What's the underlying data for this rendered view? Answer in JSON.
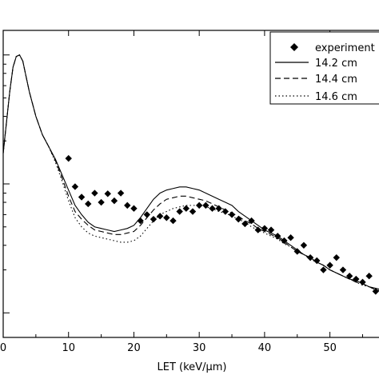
{
  "chart_data": {
    "type": "line",
    "xlabel": "LET (keV/µm)",
    "xlim": [
      0,
      58
    ],
    "ylim": [
      0,
      1
    ],
    "x_ticks": [
      "0",
      "10",
      "20",
      "30",
      "40",
      "50"
    ],
    "legend_position": "top-right",
    "series": [
      {
        "name": "experiment",
        "style": "diamond-markers",
        "x": [
          10,
          11,
          12,
          13,
          14,
          15,
          16,
          17,
          18,
          19,
          20,
          21,
          22,
          23,
          24,
          25,
          26,
          27,
          28,
          29,
          30,
          31,
          32,
          33,
          34,
          35,
          36,
          37,
          38,
          39,
          40,
          41,
          42,
          43,
          44,
          45,
          46,
          47,
          48,
          49,
          50,
          51,
          52,
          53,
          54,
          55,
          56,
          57,
          58
        ],
        "y": [
          0.583,
          0.491,
          0.457,
          0.435,
          0.47,
          0.44,
          0.468,
          0.445,
          0.47,
          0.43,
          0.42,
          0.38,
          0.4,
          0.385,
          0.395,
          0.39,
          0.38,
          0.41,
          0.42,
          0.41,
          0.43,
          0.43,
          0.42,
          0.42,
          0.41,
          0.4,
          0.385,
          0.37,
          0.38,
          0.35,
          0.355,
          0.35,
          0.33,
          0.315,
          0.325,
          0.28,
          0.3,
          0.26,
          0.25,
          0.22,
          0.235,
          0.26,
          0.22,
          0.2,
          0.19,
          0.18,
          0.2,
          0.15,
          0.155
        ]
      },
      {
        "name": "14.2 cm",
        "style": "solid",
        "x": [
          0,
          0.5,
          1,
          1.5,
          2,
          2.5,
          3,
          3.5,
          4,
          5,
          6,
          7,
          8,
          9,
          10,
          11,
          12,
          13,
          14,
          15,
          16,
          17,
          18,
          19,
          20,
          21,
          22,
          23,
          24,
          25,
          26,
          27,
          28,
          29,
          30,
          31,
          32,
          33,
          34,
          35,
          36,
          37,
          38,
          39,
          40,
          41,
          42,
          43,
          44,
          45,
          46,
          47,
          48,
          49,
          50,
          51,
          52,
          53,
          54,
          55,
          56,
          57,
          58
        ],
        "y": [
          0.6,
          0.7,
          0.8,
          0.88,
          0.915,
          0.92,
          0.9,
          0.85,
          0.8,
          0.72,
          0.66,
          0.62,
          0.58,
          0.53,
          0.48,
          0.43,
          0.4,
          0.375,
          0.36,
          0.355,
          0.35,
          0.345,
          0.35,
          0.355,
          0.365,
          0.39,
          0.42,
          0.45,
          0.47,
          0.48,
          0.485,
          0.49,
          0.49,
          0.485,
          0.48,
          0.47,
          0.46,
          0.45,
          0.44,
          0.43,
          0.41,
          0.395,
          0.38,
          0.365,
          0.35,
          0.34,
          0.33,
          0.315,
          0.3,
          0.285,
          0.27,
          0.26,
          0.245,
          0.235,
          0.22,
          0.21,
          0.2,
          0.19,
          0.185,
          0.175,
          0.165,
          0.16,
          0.155
        ]
      },
      {
        "name": "14.4 cm",
        "style": "dashed",
        "x": [
          0,
          0.5,
          1,
          1.5,
          2,
          2.5,
          3,
          3.5,
          4,
          5,
          6,
          7,
          8,
          9,
          10,
          11,
          12,
          13,
          14,
          15,
          16,
          17,
          18,
          19,
          20,
          21,
          22,
          23,
          24,
          25,
          26,
          27,
          28,
          29,
          30,
          31,
          32,
          33,
          34,
          35,
          36,
          37,
          38,
          39,
          40,
          41,
          42,
          43,
          44,
          45,
          46,
          47,
          48,
          49,
          50,
          51,
          52,
          53,
          54,
          55,
          56,
          57,
          58
        ],
        "y": [
          0.6,
          0.7,
          0.8,
          0.88,
          0.915,
          0.92,
          0.9,
          0.85,
          0.8,
          0.72,
          0.66,
          0.62,
          0.575,
          0.52,
          0.46,
          0.41,
          0.385,
          0.365,
          0.35,
          0.345,
          0.34,
          0.335,
          0.335,
          0.34,
          0.345,
          0.365,
          0.39,
          0.415,
          0.435,
          0.45,
          0.455,
          0.46,
          0.46,
          0.455,
          0.45,
          0.445,
          0.435,
          0.425,
          0.415,
          0.405,
          0.395,
          0.38,
          0.37,
          0.355,
          0.345,
          0.335,
          0.325,
          0.31,
          0.295,
          0.28,
          0.27,
          0.255,
          0.245,
          0.235,
          0.22,
          0.21,
          0.2,
          0.19,
          0.18,
          0.175,
          0.165,
          0.155,
          0.15
        ]
      },
      {
        "name": "14.6 cm",
        "style": "dotted",
        "x": [
          0,
          0.5,
          1,
          1.5,
          2,
          2.5,
          3,
          3.5,
          4,
          5,
          6,
          7,
          8,
          9,
          10,
          11,
          12,
          13,
          14,
          15,
          16,
          17,
          18,
          19,
          20,
          21,
          22,
          23,
          24,
          25,
          26,
          27,
          28,
          29,
          30,
          31,
          32,
          33,
          34,
          35,
          36,
          37,
          38,
          39,
          40,
          41,
          42,
          43,
          44,
          45,
          46,
          47,
          48,
          49,
          50,
          51,
          52,
          53,
          54,
          55,
          56,
          57,
          58
        ],
        "y": [
          0.6,
          0.7,
          0.8,
          0.88,
          0.915,
          0.92,
          0.9,
          0.85,
          0.8,
          0.72,
          0.66,
          0.62,
          0.57,
          0.51,
          0.445,
          0.39,
          0.36,
          0.34,
          0.33,
          0.325,
          0.32,
          0.315,
          0.31,
          0.31,
          0.315,
          0.33,
          0.355,
          0.38,
          0.4,
          0.41,
          0.42,
          0.425,
          0.43,
          0.43,
          0.43,
          0.425,
          0.42,
          0.41,
          0.405,
          0.395,
          0.385,
          0.375,
          0.36,
          0.35,
          0.34,
          0.33,
          0.32,
          0.305,
          0.295,
          0.28,
          0.27,
          0.255,
          0.245,
          0.235,
          0.22,
          0.21,
          0.2,
          0.19,
          0.18,
          0.17,
          0.165,
          0.155,
          0.15
        ]
      }
    ]
  }
}
